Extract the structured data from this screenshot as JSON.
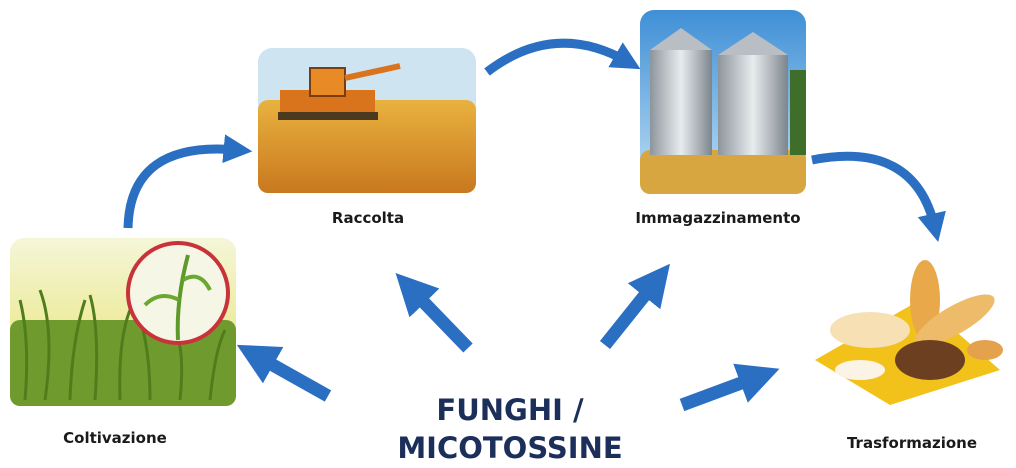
{
  "nodes": [
    {
      "label": "Coltivazione"
    },
    {
      "label": "Raccolta"
    },
    {
      "label": "Immagazzinamento"
    },
    {
      "label": "Trasformazione"
    }
  ],
  "center": {
    "lines": [
      "FUNGHI /",
      "MICOTOSSINE"
    ]
  }
}
